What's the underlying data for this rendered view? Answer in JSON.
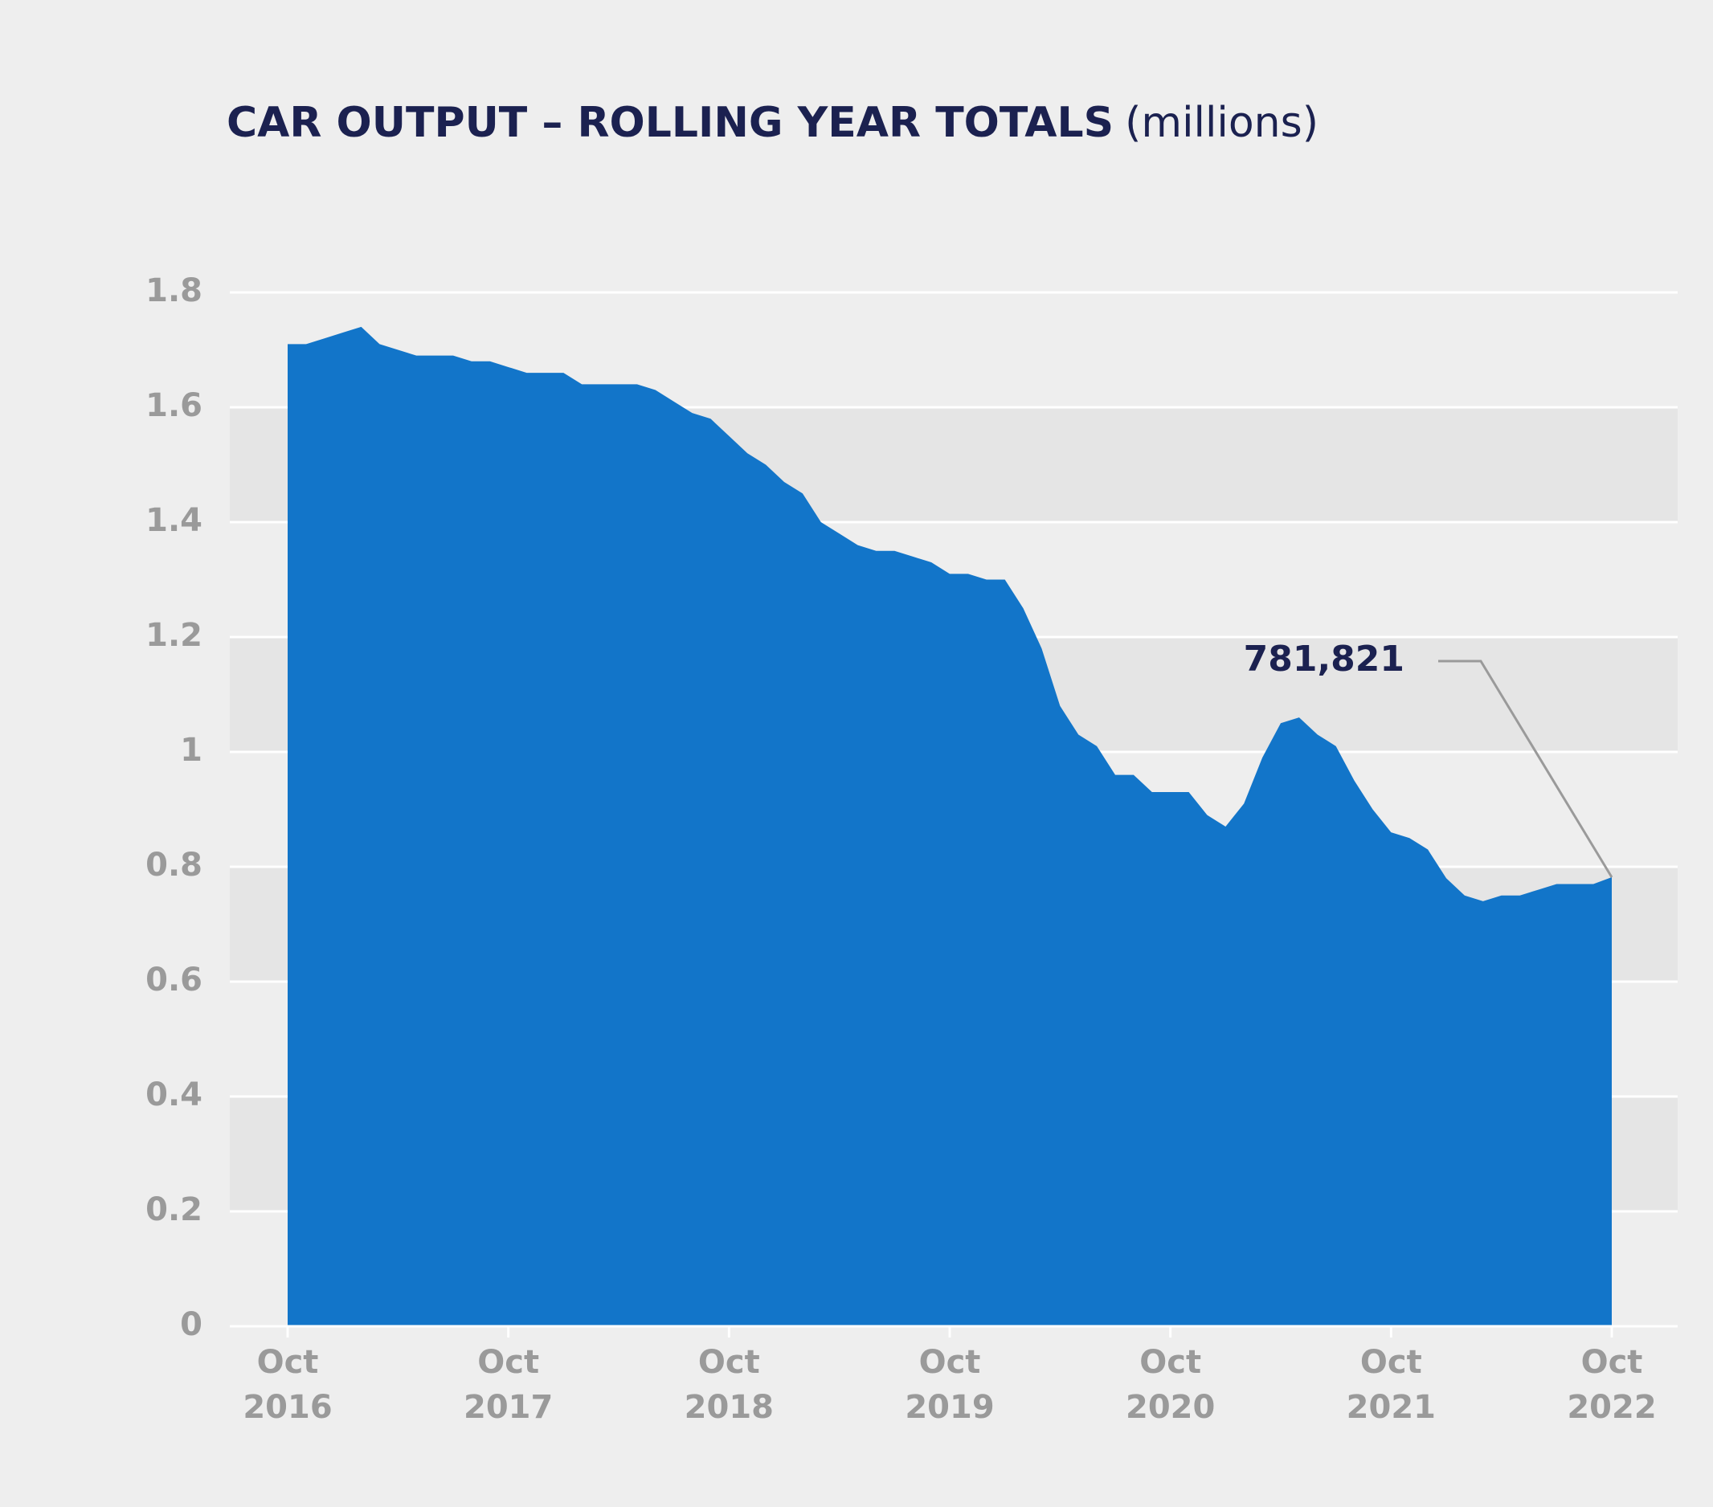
{
  "chart_data": {
    "type": "area",
    "title": "CAR OUTPUT – ROLLING YEAR TOTALS",
    "units": "(millions)",
    "categories": [
      "Oct 2016",
      null,
      null,
      null,
      null,
      null,
      null,
      null,
      null,
      null,
      null,
      null,
      "Oct 2017",
      null,
      null,
      null,
      null,
      null,
      null,
      null,
      null,
      null,
      null,
      null,
      "Oct 2018",
      null,
      null,
      null,
      null,
      null,
      null,
      null,
      null,
      null,
      null,
      null,
      "Oct 2019",
      null,
      null,
      null,
      null,
      null,
      null,
      null,
      null,
      null,
      null,
      null,
      "Oct 2020",
      null,
      null,
      null,
      null,
      null,
      null,
      null,
      null,
      null,
      null,
      null,
      "Oct 2021",
      null,
      null,
      null,
      null,
      null,
      null,
      null,
      null,
      null,
      null,
      null,
      "Oct 2022"
    ],
    "values": [
      1.71,
      1.71,
      1.72,
      1.73,
      1.74,
      1.71,
      1.7,
      1.69,
      1.69,
      1.69,
      1.68,
      1.68,
      1.67,
      1.66,
      1.66,
      1.66,
      1.64,
      1.64,
      1.64,
      1.64,
      1.63,
      1.61,
      1.59,
      1.58,
      1.55,
      1.52,
      1.5,
      1.47,
      1.45,
      1.4,
      1.38,
      1.36,
      1.35,
      1.35,
      1.34,
      1.33,
      1.31,
      1.31,
      1.3,
      1.3,
      1.25,
      1.18,
      1.08,
      1.03,
      1.01,
      0.96,
      0.96,
      0.93,
      0.93,
      0.93,
      0.89,
      0.87,
      0.91,
      0.99,
      1.05,
      1.06,
      1.03,
      1.01,
      0.95,
      0.9,
      0.86,
      0.85,
      0.83,
      0.78,
      0.75,
      0.74,
      0.75,
      0.75,
      0.76,
      0.77,
      0.77,
      0.77,
      0.781821
    ],
    "value_labels": [
      null,
      null,
      null,
      null,
      null,
      null,
      null,
      null,
      null,
      null,
      null,
      null,
      null,
      null,
      null,
      null,
      null,
      null,
      null,
      null,
      null,
      null,
      null,
      null,
      null,
      null,
      null,
      null,
      null,
      null,
      null,
      null,
      null,
      null,
      null,
      null,
      null,
      null,
      null,
      null,
      null,
      null,
      null,
      null,
      null,
      null,
      null,
      null,
      null,
      null,
      null,
      null,
      null,
      null,
      null,
      null,
      null,
      null,
      null,
      null,
      null,
      null,
      null,
      null,
      null,
      null,
      null,
      null,
      null,
      null,
      null,
      null,
      "781,821"
    ],
    "color": "#1275c9",
    "ylim": [
      0,
      1.8
    ],
    "yticks": [
      0,
      0.2,
      0.4,
      0.6,
      0.8,
      1,
      1.2,
      1.4,
      1.6,
      1.8
    ],
    "grid": true
  }
}
